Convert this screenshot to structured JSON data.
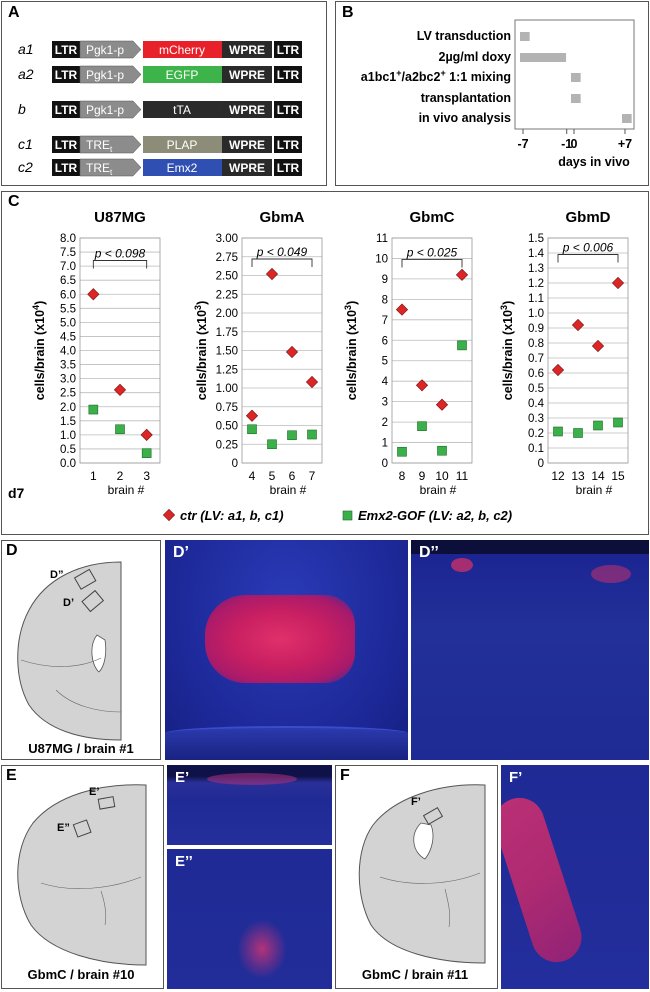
{
  "panel_labels": {
    "A": "A",
    "B": "B",
    "C": "C",
    "D": "D",
    "D1": "D’",
    "D2": "D’’",
    "E": "E",
    "E1": "E’",
    "E2": "E’’",
    "F": "F",
    "F1": "F’"
  },
  "constructs": [
    {
      "id": "a1",
      "parts": [
        "LTR",
        "Pgk1-p",
        "mCherry",
        "WPRE",
        "LTR"
      ],
      "gene_color": "#e8202a"
    },
    {
      "id": "a2",
      "parts": [
        "LTR",
        "Pgk1-p",
        "EGFP",
        "WPRE",
        "LTR"
      ],
      "gene_color": "#3cb44a"
    },
    {
      "id": "b",
      "parts": [
        "LTR",
        "Pgk1-p",
        "tTA",
        "WPRE",
        "LTR"
      ],
      "gene_color": "#2b2b2b"
    },
    {
      "id": "c1",
      "parts": [
        "LTR",
        "TREt",
        "PLAP",
        "WPRE",
        "LTR"
      ],
      "gene_color": "#8c8c78"
    },
    {
      "id": "c2",
      "parts": [
        "LTR",
        "TREt",
        "Emx2",
        "WPRE",
        "LTR"
      ],
      "gene_color": "#2f4fb3"
    }
  ],
  "timeline": {
    "rows": [
      {
        "label": "LV transduction",
        "start": -7,
        "end": -6.5
      },
      {
        "label": "2µg/ml doxy",
        "start": -7,
        "end": -1.5
      },
      {
        "label": "a1bc1+/a2bc2+ 1:1 mixing",
        "start": 0,
        "end": 0.5
      },
      {
        "label": "transplantation",
        "start": 0,
        "end": 0.5
      },
      {
        "label": "in vivo analysis",
        "start": 7,
        "end": 7.5
      }
    ],
    "ticks": [
      "-7",
      "-1",
      "0",
      "+7"
    ],
    "xlabel": "days in vivo",
    "bar_color": "#b3b3b3"
  },
  "side_label": "d7",
  "chart_data": [
    {
      "type": "scatter",
      "title": "U87MG",
      "ylabel": "cells/brain (x10",
      "exp": "4",
      "ylim": [
        0,
        8
      ],
      "yticks": [
        "0.0",
        "0.5",
        "1.0",
        "1.5",
        "2.0",
        "2.5",
        "3.0",
        "3.5",
        "4.0",
        "4.5",
        "5.0",
        "5.5",
        "6.0",
        "6.5",
        "7.0",
        "7.5",
        "8.0"
      ],
      "pvalue": "p < 0.098",
      "sig_y": 7.2,
      "categories": [
        "1",
        "2",
        "3"
      ],
      "xlabel": "brain #",
      "series": [
        {
          "name": "ctr",
          "values": [
            6.0,
            2.6,
            1.0
          ]
        },
        {
          "name": "Emx2-GOF",
          "values": [
            1.9,
            1.2,
            0.35
          ]
        }
      ]
    },
    {
      "type": "scatter",
      "title": "GbmA",
      "ylabel": "cells/brain (x10",
      "exp": "3",
      "ylim": [
        0,
        3
      ],
      "yticks": [
        "0",
        "0.25",
        "0.50",
        "0.75",
        "1.00",
        "1.25",
        "1.50",
        "1.75",
        "2.00",
        "2.25",
        "2.50",
        "2.75",
        "3.00"
      ],
      "pvalue": "p < 0.049",
      "sig_y": 2.72,
      "categories": [
        "4",
        "5",
        "6",
        "7"
      ],
      "xlabel": "brain #",
      "series": [
        {
          "name": "ctr",
          "values": [
            0.63,
            2.52,
            1.48,
            1.08
          ]
        },
        {
          "name": "Emx2-GOF",
          "values": [
            0.45,
            0.25,
            0.37,
            0.38
          ]
        }
      ]
    },
    {
      "type": "scatter",
      "title": "GbmC",
      "ylabel": "cells/brain (x10",
      "exp": "3",
      "ylim": [
        0,
        11
      ],
      "yticks": [
        "0",
        "1",
        "2",
        "3",
        "4",
        "5",
        "6",
        "7",
        "8",
        "9",
        "10",
        "11"
      ],
      "pvalue": "p < 0.025",
      "sig_y": 9.95,
      "categories": [
        "8",
        "9",
        "10",
        "11"
      ],
      "xlabel": "brain #",
      "series": [
        {
          "name": "ctr",
          "values": [
            7.5,
            3.8,
            2.85,
            9.2
          ]
        },
        {
          "name": "Emx2-GOF",
          "values": [
            0.55,
            1.8,
            0.6,
            5.75
          ]
        }
      ]
    },
    {
      "type": "scatter",
      "title": "GbmD",
      "ylabel": "cells/brain (x10",
      "exp": "3",
      "ylim": [
        0,
        1.5
      ],
      "yticks": [
        "0",
        "0.1",
        "0.2",
        "0.3",
        "0.4",
        "0.5",
        "0.6",
        "0.7",
        "0.8",
        "0.9",
        "1.0",
        "1.1",
        "1.2",
        "1.3",
        "1.4",
        "1.5"
      ],
      "pvalue": "p < 0.006",
      "sig_y": 1.39,
      "categories": [
        "12",
        "13",
        "14",
        "15"
      ],
      "xlabel": "brain #",
      "series": [
        {
          "name": "ctr",
          "values": [
            0.62,
            0.92,
            0.78,
            1.2
          ]
        },
        {
          "name": "Emx2-GOF",
          "values": [
            0.21,
            0.2,
            0.25,
            0.27
          ]
        }
      ]
    }
  ],
  "legend": {
    "ctr": "ctr (LV: a1, b, c1)",
    "gof": "Emx2-GOF (LV: a2, b, c2)"
  },
  "colors": {
    "ctr": "#dc2626",
    "gof": "#3bb04a",
    "brain": "#d3d3d3",
    "micro_bg": "#1f2a9c"
  },
  "captions": {
    "D": "U87MG",
    "D_brain": "brain #1",
    "E": "GbmC",
    "E_brain": "brain #10",
    "F": "GbmC",
    "F_brain": "brain #11"
  },
  "box_labels": {
    "D1": "D”",
    "D2": "D’",
    "E1": "E’",
    "E2": "E”",
    "F1": "F’"
  }
}
